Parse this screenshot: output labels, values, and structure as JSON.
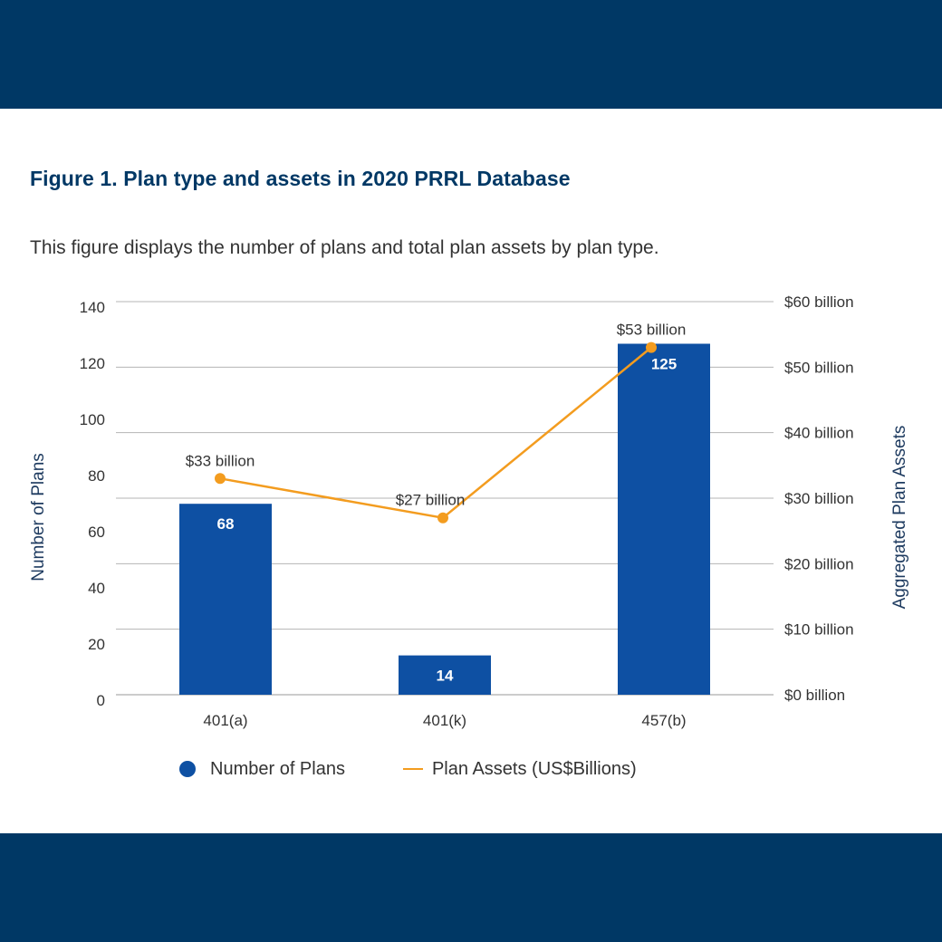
{
  "header": {
    "title": "Figure 1. Plan type and assets in 2020 PRRL Database",
    "description": "This figure displays the number of plans and total plan assets by plan type."
  },
  "colors": {
    "band": "#003865",
    "bar": "#0e50a3",
    "line": "#f39c1f",
    "grid": "#b5b5b5",
    "text": "#333333",
    "axis_title": "#1d3a5f"
  },
  "chart_data": {
    "type": "bar",
    "title": "Figure 1. Plan type and assets in 2020 PRRL Database",
    "categories": [
      "401(a)",
      "401(k)",
      "457(b)"
    ],
    "series": [
      {
        "name": "Number of Plans",
        "type": "bar",
        "axis": "left",
        "values": [
          68,
          14,
          125
        ],
        "labels": [
          "68",
          "14",
          "125"
        ]
      },
      {
        "name": "Plan Assets (US$Billions)",
        "type": "line",
        "axis": "right",
        "values": [
          33,
          27,
          53
        ],
        "labels": [
          "$33 billion",
          "$27 billion",
          "$53 billion"
        ]
      }
    ],
    "ylabel": "Number of Plans",
    "ylim": [
      0,
      140
    ],
    "yticks": [
      "0",
      "20",
      "40",
      "60",
      "80",
      "100",
      "120",
      "140"
    ],
    "y2label": "Aggregated Plan Assets",
    "y2lim": [
      0,
      60
    ],
    "y2ticks": [
      "$0 billion",
      "$10 billion",
      "$20 billion",
      "$30 billion",
      "$40 billion",
      "$50 billion",
      "$60 billion"
    ],
    "grid": true,
    "legend_position": "bottom"
  }
}
